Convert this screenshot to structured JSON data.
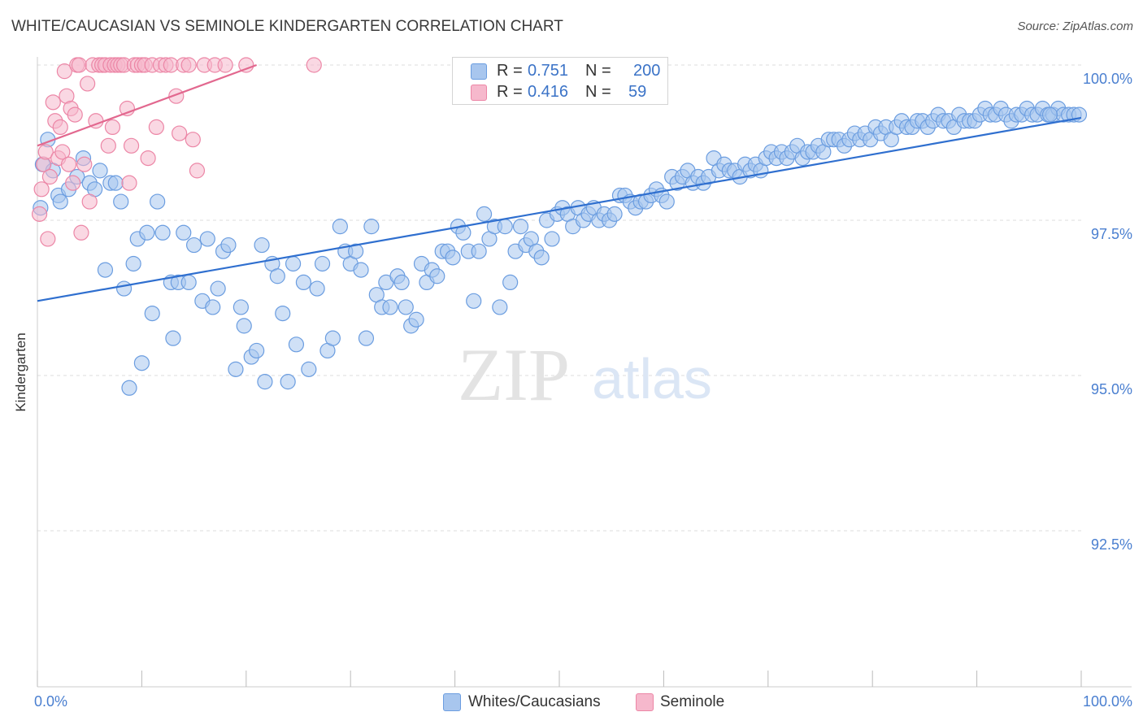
{
  "title": "WHITE/CAUCASIAN VS SEMINOLE KINDERGARTEN CORRELATION CHART",
  "source": "Source: ZipAtlas.com",
  "watermark": {
    "zip": "ZIP",
    "atlas": "atlas"
  },
  "legend_top": [
    {
      "r_label": "R =",
      "r_value": "0.751",
      "n_label": "N =",
      "n_value": "200"
    },
    {
      "r_label": "R =",
      "r_value": "0.416",
      "n_label": "N =",
      "n_value": "59"
    }
  ],
  "legend_bottom": [
    "Whites/Caucasians",
    "Seminole"
  ],
  "colors": {
    "blue_fill": "#a8c6ee",
    "blue_stroke": "#6b9de0",
    "blue_line": "#2f6fcf",
    "pink_fill": "#f6b8cc",
    "pink_stroke": "#ec86a6",
    "pink_line": "#e2688f",
    "tick_label": "#4a7fd0",
    "grid": "#dddddd"
  },
  "chart_data": {
    "type": "scatter",
    "title": "WHITE/CAUCASIAN VS SEMINOLE KINDERGARTEN CORRELATION CHART",
    "xlabel": "",
    "ylabel": "Kindergarten",
    "x_range": [
      0,
      100
    ],
    "y_range": [
      90.0,
      100.3
    ],
    "x_tick_labels": [
      "0.0%",
      "100.0%"
    ],
    "y_ticks": [
      {
        "value": 100.0,
        "label": "100.0%"
      },
      {
        "value": 97.5,
        "label": "97.5%"
      },
      {
        "value": 95.0,
        "label": "95.0%"
      },
      {
        "value": 92.5,
        "label": "92.5%"
      }
    ],
    "series": [
      {
        "name": "Whites/Caucasians",
        "r": 0.751,
        "n": 200,
        "trend": [
          [
            0,
            96.2
          ],
          [
            100,
            99.15
          ]
        ],
        "points": [
          [
            0.3,
            97.7
          ],
          [
            0.5,
            98.4
          ],
          [
            1.0,
            98.8
          ],
          [
            1.5,
            98.3
          ],
          [
            2.0,
            97.9
          ],
          [
            2.2,
            97.8
          ],
          [
            3.0,
            98.0
          ],
          [
            3.8,
            98.2
          ],
          [
            4.4,
            98.5
          ],
          [
            5.0,
            98.1
          ],
          [
            5.5,
            98.0
          ],
          [
            6.0,
            98.3
          ],
          [
            6.5,
            96.7
          ],
          [
            7.0,
            98.1
          ],
          [
            7.5,
            98.1
          ],
          [
            8.0,
            97.8
          ],
          [
            8.3,
            96.4
          ],
          [
            8.8,
            94.8
          ],
          [
            9.2,
            96.8
          ],
          [
            9.6,
            97.2
          ],
          [
            10.0,
            95.2
          ],
          [
            10.5,
            97.3
          ],
          [
            11.0,
            96.0
          ],
          [
            11.5,
            97.8
          ],
          [
            12.0,
            97.3
          ],
          [
            12.8,
            96.5
          ],
          [
            13.0,
            95.6
          ],
          [
            13.5,
            96.5
          ],
          [
            14.0,
            97.3
          ],
          [
            14.5,
            96.5
          ],
          [
            15.0,
            97.1
          ],
          [
            15.8,
            96.2
          ],
          [
            16.3,
            97.2
          ],
          [
            16.8,
            96.1
          ],
          [
            17.3,
            96.4
          ],
          [
            17.8,
            97.0
          ],
          [
            18.3,
            97.1
          ],
          [
            19.0,
            95.1
          ],
          [
            19.5,
            96.1
          ],
          [
            19.8,
            95.8
          ],
          [
            20.5,
            95.3
          ],
          [
            21.0,
            95.4
          ],
          [
            21.5,
            97.1
          ],
          [
            21.8,
            94.9
          ],
          [
            22.5,
            96.8
          ],
          [
            23.0,
            96.6
          ],
          [
            23.5,
            96.0
          ],
          [
            24.0,
            94.9
          ],
          [
            24.5,
            96.8
          ],
          [
            24.8,
            95.5
          ],
          [
            25.5,
            96.5
          ],
          [
            26.0,
            95.1
          ],
          [
            26.8,
            96.4
          ],
          [
            27.3,
            96.8
          ],
          [
            27.8,
            95.4
          ],
          [
            28.3,
            95.6
          ],
          [
            29.0,
            97.4
          ],
          [
            29.5,
            97.0
          ],
          [
            30.0,
            96.8
          ],
          [
            30.5,
            97.0
          ],
          [
            31.0,
            96.7
          ],
          [
            31.5,
            95.6
          ],
          [
            32.0,
            97.4
          ],
          [
            32.5,
            96.3
          ],
          [
            33.0,
            96.1
          ],
          [
            33.4,
            96.5
          ],
          [
            33.8,
            96.1
          ],
          [
            34.5,
            96.6
          ],
          [
            34.9,
            96.5
          ],
          [
            35.3,
            96.1
          ],
          [
            35.8,
            95.8
          ],
          [
            36.3,
            95.9
          ],
          [
            36.8,
            96.8
          ],
          [
            37.3,
            96.5
          ],
          [
            37.8,
            96.7
          ],
          [
            38.3,
            96.6
          ],
          [
            38.8,
            97.0
          ],
          [
            39.3,
            97.0
          ],
          [
            39.8,
            96.9
          ],
          [
            40.3,
            97.4
          ],
          [
            40.8,
            97.3
          ],
          [
            41.3,
            97.0
          ],
          [
            41.8,
            96.2
          ],
          [
            42.3,
            97.0
          ],
          [
            42.8,
            97.6
          ],
          [
            43.3,
            97.2
          ],
          [
            43.8,
            97.4
          ],
          [
            44.3,
            96.1
          ],
          [
            44.8,
            97.4
          ],
          [
            45.3,
            96.5
          ],
          [
            45.8,
            97.0
          ],
          [
            46.3,
            97.4
          ],
          [
            46.8,
            97.1
          ],
          [
            47.3,
            97.2
          ],
          [
            47.8,
            97.0
          ],
          [
            48.3,
            96.9
          ],
          [
            48.8,
            97.5
          ],
          [
            49.3,
            97.2
          ],
          [
            49.8,
            97.6
          ],
          [
            50.3,
            97.7
          ],
          [
            50.8,
            97.6
          ],
          [
            51.3,
            97.4
          ],
          [
            51.8,
            97.7
          ],
          [
            52.3,
            97.5
          ],
          [
            52.8,
            97.6
          ],
          [
            53.3,
            97.7
          ],
          [
            53.8,
            97.5
          ],
          [
            54.3,
            97.6
          ],
          [
            54.8,
            97.5
          ],
          [
            55.3,
            97.6
          ],
          [
            55.8,
            97.9
          ],
          [
            56.3,
            97.9
          ],
          [
            56.8,
            97.8
          ],
          [
            57.3,
            97.7
          ],
          [
            57.8,
            97.8
          ],
          [
            58.3,
            97.8
          ],
          [
            58.8,
            97.9
          ],
          [
            59.3,
            98.0
          ],
          [
            59.8,
            97.9
          ],
          [
            60.3,
            97.8
          ],
          [
            60.8,
            98.2
          ],
          [
            61.3,
            98.1
          ],
          [
            61.8,
            98.2
          ],
          [
            62.3,
            98.3
          ],
          [
            62.8,
            98.1
          ],
          [
            63.3,
            98.2
          ],
          [
            63.8,
            98.1
          ],
          [
            64.3,
            98.2
          ],
          [
            64.8,
            98.5
          ],
          [
            65.3,
            98.3
          ],
          [
            65.8,
            98.4
          ],
          [
            66.3,
            98.3
          ],
          [
            66.8,
            98.3
          ],
          [
            67.3,
            98.2
          ],
          [
            67.8,
            98.4
          ],
          [
            68.3,
            98.3
          ],
          [
            68.8,
            98.4
          ],
          [
            69.3,
            98.3
          ],
          [
            69.8,
            98.5
          ],
          [
            70.3,
            98.6
          ],
          [
            70.8,
            98.5
          ],
          [
            71.3,
            98.6
          ],
          [
            71.8,
            98.5
          ],
          [
            72.3,
            98.6
          ],
          [
            72.8,
            98.7
          ],
          [
            73.3,
            98.5
          ],
          [
            73.8,
            98.6
          ],
          [
            74.3,
            98.6
          ],
          [
            74.8,
            98.7
          ],
          [
            75.3,
            98.6
          ],
          [
            75.8,
            98.8
          ],
          [
            76.3,
            98.8
          ],
          [
            76.8,
            98.8
          ],
          [
            77.3,
            98.7
          ],
          [
            77.8,
            98.8
          ],
          [
            78.3,
            98.9
          ],
          [
            78.8,
            98.8
          ],
          [
            79.3,
            98.9
          ],
          [
            79.8,
            98.8
          ],
          [
            80.3,
            99.0
          ],
          [
            80.8,
            98.9
          ],
          [
            81.3,
            99.0
          ],
          [
            81.8,
            98.8
          ],
          [
            82.3,
            99.0
          ],
          [
            82.8,
            99.1
          ],
          [
            83.3,
            99.0
          ],
          [
            83.8,
            99.0
          ],
          [
            84.3,
            99.1
          ],
          [
            84.8,
            99.1
          ],
          [
            85.3,
            99.0
          ],
          [
            85.8,
            99.1
          ],
          [
            86.3,
            99.2
          ],
          [
            86.8,
            99.1
          ],
          [
            87.3,
            99.1
          ],
          [
            87.8,
            99.0
          ],
          [
            88.3,
            99.2
          ],
          [
            88.8,
            99.1
          ],
          [
            89.3,
            99.1
          ],
          [
            89.8,
            99.1
          ],
          [
            90.3,
            99.2
          ],
          [
            90.8,
            99.3
          ],
          [
            91.3,
            99.2
          ],
          [
            91.8,
            99.2
          ],
          [
            92.3,
            99.3
          ],
          [
            92.8,
            99.2
          ],
          [
            93.3,
            99.1
          ],
          [
            93.8,
            99.2
          ],
          [
            94.3,
            99.2
          ],
          [
            94.8,
            99.3
          ],
          [
            95.3,
            99.2
          ],
          [
            95.8,
            99.2
          ],
          [
            96.3,
            99.3
          ],
          [
            96.8,
            99.2
          ],
          [
            97.3,
            99.2
          ],
          [
            97.8,
            99.3
          ],
          [
            98.3,
            99.2
          ],
          [
            98.8,
            99.2
          ],
          [
            99.3,
            99.2
          ],
          [
            99.8,
            99.2
          ],
          [
            97.0,
            99.2
          ]
        ]
      },
      {
        "name": "Seminole",
        "r": 0.416,
        "n": 59,
        "trend": [
          [
            0,
            98.7
          ],
          [
            21,
            100.0
          ]
        ],
        "points": [
          [
            0.2,
            97.6
          ],
          [
            0.4,
            98.0
          ],
          [
            0.6,
            98.4
          ],
          [
            0.8,
            98.6
          ],
          [
            1.0,
            97.2
          ],
          [
            1.2,
            98.2
          ],
          [
            1.5,
            99.4
          ],
          [
            1.7,
            99.1
          ],
          [
            2.0,
            98.5
          ],
          [
            2.2,
            99.0
          ],
          [
            2.4,
            98.6
          ],
          [
            2.6,
            99.9
          ],
          [
            2.8,
            99.5
          ],
          [
            3.0,
            98.4
          ],
          [
            3.2,
            99.3
          ],
          [
            3.4,
            98.1
          ],
          [
            3.6,
            99.2
          ],
          [
            3.8,
            100.0
          ],
          [
            4.0,
            100.0
          ],
          [
            4.2,
            97.3
          ],
          [
            4.5,
            98.4
          ],
          [
            4.8,
            99.7
          ],
          [
            5.0,
            97.8
          ],
          [
            5.3,
            100.0
          ],
          [
            5.6,
            99.1
          ],
          [
            5.9,
            100.0
          ],
          [
            6.2,
            100.0
          ],
          [
            6.5,
            100.0
          ],
          [
            6.8,
            98.7
          ],
          [
            7.0,
            100.0
          ],
          [
            7.2,
            99.0
          ],
          [
            7.4,
            100.0
          ],
          [
            7.7,
            100.0
          ],
          [
            8.0,
            100.0
          ],
          [
            8.3,
            100.0
          ],
          [
            8.6,
            99.3
          ],
          [
            8.8,
            98.1
          ],
          [
            9.0,
            98.7
          ],
          [
            9.3,
            100.0
          ],
          [
            9.6,
            100.0
          ],
          [
            10.0,
            100.0
          ],
          [
            10.3,
            100.0
          ],
          [
            10.6,
            98.5
          ],
          [
            11.0,
            100.0
          ],
          [
            11.4,
            99.0
          ],
          [
            11.8,
            100.0
          ],
          [
            12.3,
            100.0
          ],
          [
            12.8,
            100.0
          ],
          [
            13.3,
            99.5
          ],
          [
            13.6,
            98.9
          ],
          [
            14.0,
            100.0
          ],
          [
            14.5,
            100.0
          ],
          [
            14.9,
            98.8
          ],
          [
            15.3,
            98.3
          ],
          [
            16.0,
            100.0
          ],
          [
            17.0,
            100.0
          ],
          [
            18.0,
            100.0
          ],
          [
            20.0,
            100.0
          ],
          [
            26.5,
            100.0
          ]
        ]
      }
    ]
  }
}
